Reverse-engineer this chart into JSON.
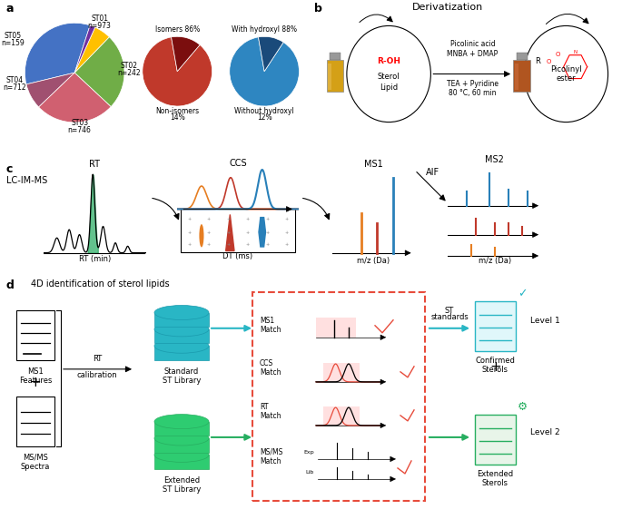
{
  "pie1_values": [
    973,
    242,
    746,
    712,
    159,
    50
  ],
  "pie1_colors": [
    "#4472c4",
    "#a05070",
    "#d06070",
    "#70ad47",
    "#ffc000",
    "#7030a0"
  ],
  "pie2_values": [
    86,
    14
  ],
  "pie2_colors": [
    "#c0392b",
    "#7b0e0e"
  ],
  "pie3_values": [
    88,
    12
  ],
  "pie3_colors": [
    "#2e86c1",
    "#1a4a7a"
  ],
  "bg_color": "#ffffff",
  "cyan_color": "#29b6c5",
  "green_color": "#27ae60",
  "red_dashed": "#e74c3c",
  "derivatization_title": "Derivatization",
  "lc_im_ms_label": "LC-IM-MS",
  "rt_label": "RT",
  "ccs_label": "CCS",
  "ms1_label": "MS1",
  "ms2_label": "MS2",
  "aif_label": "AIF",
  "rt_axis_label": "RT (min)",
  "dt_axis_label": "DT (ms)",
  "mz_axis_label": "m/z (Da)",
  "panel_d_title": "4D identification of sterol lipids",
  "ms1_features_label": "MS1\nFeatures",
  "msms_spectra_label": "MS/MS\nSpectra",
  "rt_calibration_label": "RT\ncalibration",
  "standard_st_label": "Standard\nST Library",
  "extended_st_label": "Extended\nST Library",
  "ms1_match_label": "MS1\nMatch",
  "ccs_match_label": "CCS\nMatch",
  "rt_match_label": "RT\nMatch",
  "msms_match_label": "MS/MS\nMatch",
  "st_standards_label": "ST\nstandards",
  "confirmed_sterols_label": "Confirmed\nSterols",
  "extended_sterols_label": "Extended\nSterols",
  "level1_label": "Level 1",
  "level2_label": "Level 2",
  "picolinic_acid_label": "Picolinic acid\nMNBA + DMAP",
  "tea_pyridine_label": "TEA + Pyridine\n80 °C, 60 min",
  "r_oh_label": "R-OH",
  "sterol_lipid_label": "Sterol\nLipid",
  "picolinyl_ester_label": "Picolinyl\nester",
  "orange_color": "#e67e22",
  "darkred_color": "#c0392b",
  "blue_color": "#2980b9"
}
